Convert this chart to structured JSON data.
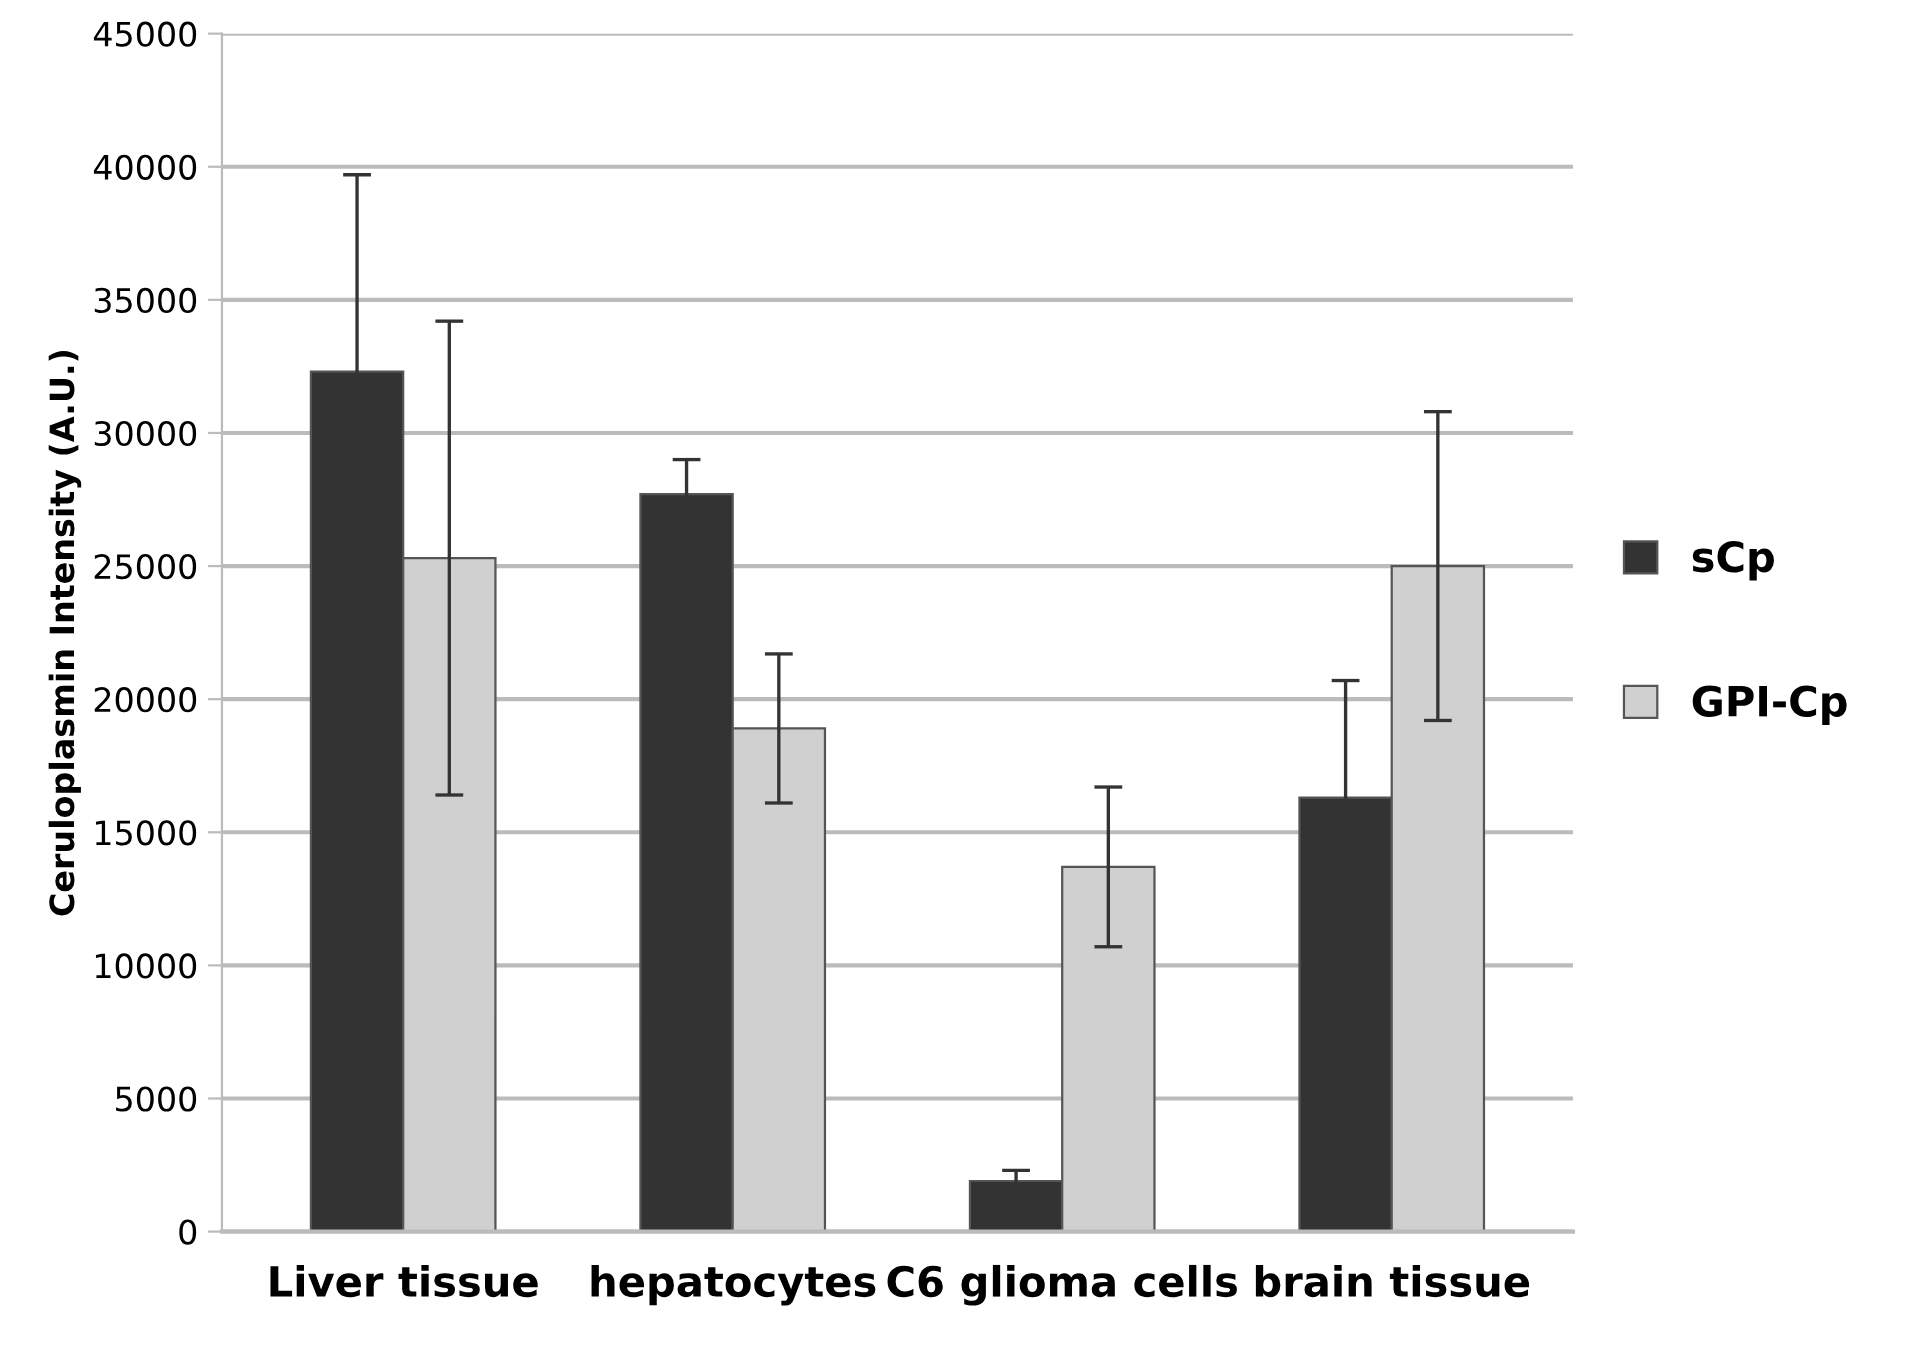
{
  "chart_data": {
    "type": "bar",
    "ylabel": "Ceruloplasmin Intensity (A.U.)",
    "categories": [
      "Liver tissue",
      "hepatocytes",
      "C6 glioma cells",
      "brain tissue"
    ],
    "series": [
      {
        "name": "sCp",
        "color": "#333333",
        "values": [
          32300,
          27700,
          1900,
          16300
        ],
        "errors": [
          7400,
          1300,
          400,
          4400
        ]
      },
      {
        "name": "GPI-Cp",
        "color": "#d0d0d0",
        "values": [
          25300,
          18900,
          13700,
          25000
        ],
        "errors": [
          8900,
          2800,
          3000,
          5800
        ]
      }
    ],
    "ylim": [
      0,
      45000
    ],
    "yticks": [
      0,
      5000,
      10000,
      15000,
      20000,
      25000,
      30000,
      35000,
      40000,
      45000
    ],
    "grid": "y",
    "legend": "right"
  }
}
